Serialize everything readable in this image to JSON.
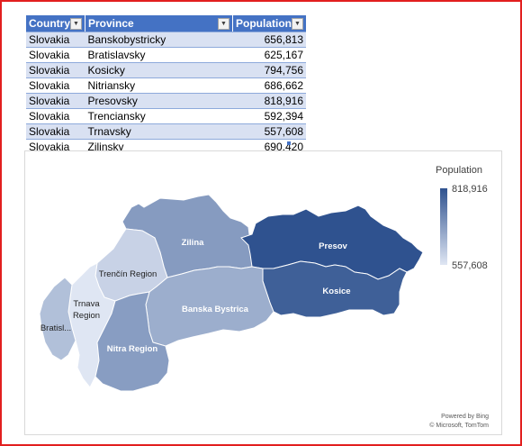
{
  "table": {
    "headers": {
      "country": "Country",
      "province": "Province",
      "population": "Population"
    },
    "rows": [
      {
        "country": "Slovakia",
        "province": "Banskobystricky",
        "population": "656,813"
      },
      {
        "country": "Slovakia",
        "province": "Bratislavsky",
        "population": "625,167"
      },
      {
        "country": "Slovakia",
        "province": "Kosicky",
        "population": "794,756"
      },
      {
        "country": "Slovakia",
        "province": "Nitriansky",
        "population": "686,662"
      },
      {
        "country": "Slovakia",
        "province": "Presovsky",
        "population": "818,916"
      },
      {
        "country": "Slovakia",
        "province": "Trenciansky",
        "population": "592,394"
      },
      {
        "country": "Slovakia",
        "province": "Trnavsky",
        "population": "557,608"
      },
      {
        "country": "Slovakia",
        "province": "Zilinsky",
        "population": "690,420"
      }
    ]
  },
  "map": {
    "legend_title": "Population",
    "legend_max": "818,916",
    "legend_min": "557,608",
    "attribution_line1": "Powered by Bing",
    "attribution_line2": "© Microsoft, TomTom",
    "colors": {
      "max": "#2f528f",
      "min": "#dfe6f3"
    },
    "regions": [
      {
        "key": "zilina",
        "label": "Zilina",
        "population": 690420
      },
      {
        "key": "presov",
        "label": "Presov",
        "population": 818916
      },
      {
        "key": "kosice",
        "label": "Kosice",
        "population": 794756
      },
      {
        "key": "trencin",
        "label": "Trenčín Region",
        "population": 592394
      },
      {
        "key": "banska",
        "label": "Banska Bystrica",
        "population": 656813
      },
      {
        "key": "trnava",
        "label": "Trnava Region",
        "population": 557608
      },
      {
        "key": "nitra",
        "label": "Nitra Region",
        "population": 686662
      },
      {
        "key": "bratislava",
        "label": "Bratisl...",
        "population": 625167
      }
    ]
  }
}
